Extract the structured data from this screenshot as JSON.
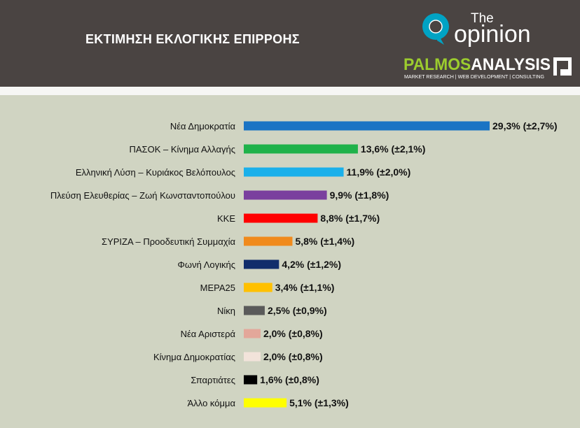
{
  "header": {
    "title": "ΕΚΤΙΜΗΣΗ ΕΚΛΟΓΙΚΗΣ ΕΠΙΡΡΟΗΣ",
    "logo_opinion": {
      "small": "The",
      "big": "opinion",
      "icon": "opinion-q-logo-icon",
      "color": "#00a3c4"
    },
    "logo_palmos": {
      "part1": "PALMOS",
      "part2": "ANALYSIS",
      "tagline": "MARKET RESEARCH | WEB DEVELOPMENT | CONSULTING",
      "color1": "#9ccc2e",
      "color2": "#ffffff"
    }
  },
  "colors": {
    "header_bg": "#4a4442",
    "chart_bg": "#d0d4c2"
  },
  "chart_data": {
    "type": "bar",
    "orientation": "horizontal",
    "title": "ΕΚΤΙΜΗΣΗ ΕΚΛΟΓΙΚΗΣ ΕΠΙΡΡΟΗΣ",
    "xlim": [
      0,
      29.3
    ],
    "grid": false,
    "categories": [
      "Νέα Δημοκρατία",
      "ΠΑΣΟΚ – Κίνημα Αλλαγής",
      "Ελληνική Λύση – Κυριάκος Βελόπουλος",
      "Πλεύση Ελευθερίας – Ζωή Κωνσταντοπούλου",
      "ΚΚΕ",
      "ΣΥΡΙΖΑ – Προοδευτική Συμμαχία",
      "Φωνή Λογικής",
      "ΜΕΡΑ25",
      "Νίκη",
      "Νέα Αριστερά",
      "Κίνημα Δημοκρατίας",
      "Σπαρτιάτες",
      "Άλλο κόμμα"
    ],
    "values": [
      29.3,
      13.6,
      11.9,
      9.9,
      8.8,
      5.8,
      4.2,
      3.4,
      2.5,
      2.0,
      2.0,
      1.6,
      5.1
    ],
    "labels": [
      "29,3% (±2,7%)",
      "13,6% (±2,1%)",
      "11,9% (±2,0%)",
      "9,9% (±1,8%)",
      "8,8% (±1,7%)",
      "5,8% (±1,4%)",
      "4,2% (±1,2%)",
      "3,4% (±1,1%)",
      "2,5% (±0,9%)",
      "2,0% (±0,8%)",
      "2,0% (±0,8%)",
      "1,6% (±0,8%)",
      "5,1% (±1,3%)"
    ],
    "colors": [
      "#1a74c4",
      "#1fb24a",
      "#1ab0ea",
      "#7a3f9e",
      "#ff0000",
      "#f08a1c",
      "#112d6b",
      "#ffc000",
      "#5a5a5a",
      "#e3a79a",
      "#f2e3da",
      "#000000",
      "#ffff00"
    ]
  }
}
